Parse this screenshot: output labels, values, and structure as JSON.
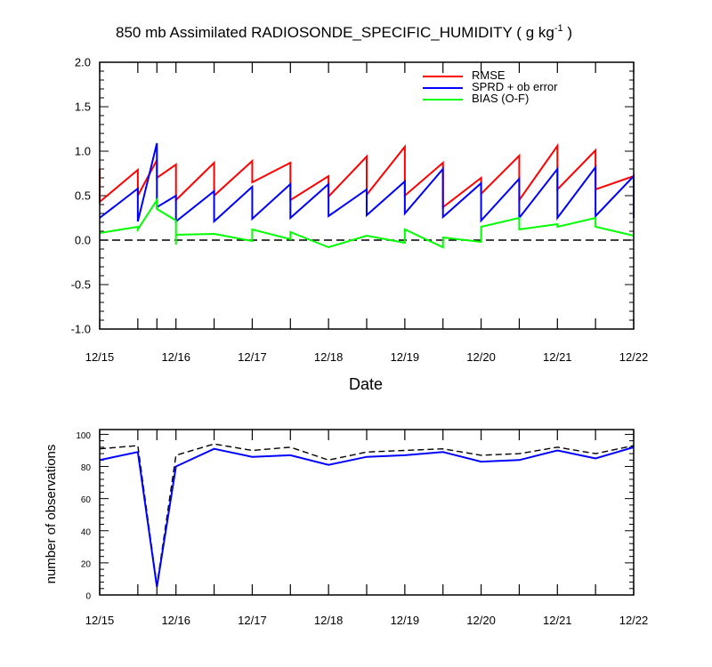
{
  "chart_data": [
    {
      "type": "line",
      "title": "850 mb Assimilated RADIOSONDE_SPECIFIC_HUMIDITY ( g kg",
      "title_unit_exponent": "-1",
      "title_close": " )",
      "xlabel": "Date",
      "ylabel": "",
      "xlim": [
        0,
        7
      ],
      "ylim": [
        -1.0,
        2.0
      ],
      "yticks": [
        "2.0",
        "1.5",
        "1.0",
        "0.5",
        "0.0",
        "-0.5",
        "-1.0"
      ],
      "ytick_values": [
        2.0,
        1.5,
        1.0,
        0.5,
        0.0,
        -0.5,
        -1.0
      ],
      "xtick_labels": [
        "12/15",
        "12/16",
        "12/17",
        "12/18",
        "12/19",
        "12/20",
        "12/21",
        "12/22"
      ],
      "legend": [
        {
          "label": "RMSE",
          "color": "#ff0000"
        },
        {
          "label": "SPRD + ob error",
          "color": "#0000ff"
        },
        {
          "label": "BIAS (O-F)",
          "color": "#00ff00"
        }
      ],
      "reference_line": {
        "y": 0.0,
        "style": "dashed",
        "color": "#000000"
      },
      "series": [
        {
          "name": "RMSE",
          "color": "#ff0000",
          "points": [
            [
              0,
              0.8
            ],
            [
              0,
              0.43
            ],
            [
              0.5,
              0.79
            ],
            [
              0.5,
              0.5
            ],
            [
              0.75,
              0.9
            ],
            [
              0.75,
              0.7
            ],
            [
              1.0,
              0.85
            ],
            [
              1.0,
              0.45
            ],
            [
              1.5,
              0.87
            ],
            [
              1.5,
              0.5
            ],
            [
              2.0,
              0.89
            ],
            [
              2.0,
              0.65
            ],
            [
              2.5,
              0.87
            ],
            [
              2.5,
              0.45
            ],
            [
              3.0,
              0.72
            ],
            [
              3.0,
              0.49
            ],
            [
              3.5,
              0.94
            ],
            [
              3.5,
              0.51
            ],
            [
              4.0,
              1.05
            ],
            [
              4.0,
              0.5
            ],
            [
              4.5,
              0.87
            ],
            [
              4.5,
              0.37
            ],
            [
              5.0,
              0.7
            ],
            [
              5.0,
              0.52
            ],
            [
              5.5,
              0.95
            ],
            [
              5.5,
              0.45
            ],
            [
              6.0,
              1.06
            ],
            [
              6.0,
              0.57
            ],
            [
              6.5,
              1.01
            ],
            [
              6.5,
              0.57
            ],
            [
              7.0,
              0.72
            ],
            [
              7.0,
              0.28
            ]
          ]
        },
        {
          "name": "SPRD + ob error",
          "color": "#0000ff",
          "points": [
            [
              0,
              0.25
            ],
            [
              0.5,
              0.58
            ],
            [
              0.5,
              0.21
            ],
            [
              0.75,
              1.09
            ],
            [
              0.75,
              0.37
            ],
            [
              1.0,
              0.5
            ],
            [
              1.0,
              0.21
            ],
            [
              1.5,
              0.55
            ],
            [
              1.5,
              0.21
            ],
            [
              2.0,
              0.6
            ],
            [
              2.0,
              0.24
            ],
            [
              2.5,
              0.63
            ],
            [
              2.5,
              0.25
            ],
            [
              3.0,
              0.63
            ],
            [
              3.0,
              0.27
            ],
            [
              3.5,
              0.57
            ],
            [
              3.5,
              0.28
            ],
            [
              4.0,
              0.66
            ],
            [
              4.0,
              0.3
            ],
            [
              4.5,
              0.8
            ],
            [
              4.5,
              0.26
            ],
            [
              5.0,
              0.64
            ],
            [
              5.0,
              0.22
            ],
            [
              5.5,
              0.69
            ],
            [
              5.5,
              0.25
            ],
            [
              6.0,
              0.8
            ],
            [
              6.0,
              0.25
            ],
            [
              6.5,
              0.82
            ],
            [
              6.5,
              0.27
            ],
            [
              7.0,
              0.72
            ],
            [
              7.0,
              0.25
            ]
          ]
        },
        {
          "name": "BIAS (O-F)",
          "color": "#00ff00",
          "points": [
            [
              0,
              0.08
            ],
            [
              0.5,
              0.15
            ],
            [
              0.5,
              0.12
            ],
            [
              0.75,
              0.45
            ],
            [
              0.75,
              0.35
            ],
            [
              1.0,
              0.22
            ],
            [
              1.0,
              -0.05
            ],
            [
              1.0,
              0.06
            ],
            [
              1.5,
              0.07
            ],
            [
              2.0,
              -0.01
            ],
            [
              2.0,
              0.12
            ],
            [
              2.5,
              0.01
            ],
            [
              2.5,
              0.09
            ],
            [
              3.0,
              -0.08
            ],
            [
              3.5,
              0.05
            ],
            [
              4.0,
              -0.03
            ],
            [
              4.0,
              0.12
            ],
            [
              4.5,
              -0.08
            ],
            [
              4.5,
              0.03
            ],
            [
              5.0,
              -0.02
            ],
            [
              5.0,
              0.15
            ],
            [
              5.5,
              0.25
            ],
            [
              5.5,
              0.12
            ],
            [
              6.0,
              0.18
            ],
            [
              6.0,
              0.15
            ],
            [
              6.5,
              0.25
            ],
            [
              6.5,
              0.15
            ],
            [
              7.0,
              0.05
            ]
          ]
        }
      ]
    },
    {
      "type": "line",
      "title": "",
      "xlabel": "",
      "ylabel": "number of observations",
      "xlim": [
        0,
        7
      ],
      "ylim": [
        0,
        103
      ],
      "yticks": [
        "100",
        "80",
        "60",
        "40",
        "20",
        "0"
      ],
      "ytick_values": [
        100,
        80,
        60,
        40,
        20,
        0
      ],
      "xtick_labels": [
        "12/15",
        "12/16",
        "12/17",
        "12/18",
        "12/19",
        "12/20",
        "12/21",
        "12/22"
      ],
      "series": [
        {
          "name": "observations possible",
          "style": "dashed",
          "color": "#000000",
          "points": [
            [
              0,
              91
            ],
            [
              0.5,
              93
            ],
            [
              0.75,
              6
            ],
            [
              1.0,
              87
            ],
            [
              1.5,
              94
            ],
            [
              2.0,
              90
            ],
            [
              2.5,
              92
            ],
            [
              3.0,
              84
            ],
            [
              3.5,
              89
            ],
            [
              4.0,
              90
            ],
            [
              4.5,
              91
            ],
            [
              5.0,
              87
            ],
            [
              5.5,
              88
            ],
            [
              6.0,
              92
            ],
            [
              6.5,
              88
            ],
            [
              7.0,
              93
            ]
          ]
        },
        {
          "name": "observations assimilated",
          "style": "solid",
          "color": "#0000ff",
          "points": [
            [
              0,
              84
            ],
            [
              0.5,
              89
            ],
            [
              0.75,
              5
            ],
            [
              1.0,
              80
            ],
            [
              1.5,
              91
            ],
            [
              2.0,
              86
            ],
            [
              2.5,
              87
            ],
            [
              3.0,
              81
            ],
            [
              3.5,
              86
            ],
            [
              4.0,
              87
            ],
            [
              4.5,
              89
            ],
            [
              5.0,
              83
            ],
            [
              5.5,
              84
            ],
            [
              6.0,
              90
            ],
            [
              6.5,
              85
            ],
            [
              7.0,
              92
            ]
          ]
        }
      ]
    }
  ]
}
